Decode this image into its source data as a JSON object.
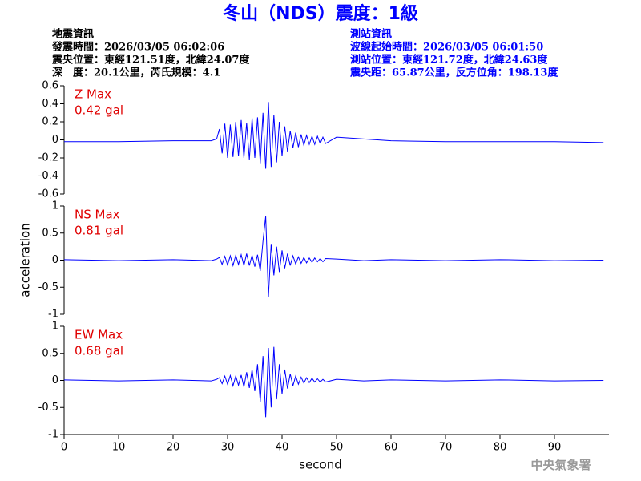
{
  "header": {
    "title": "冬山（NDS）震度：1級",
    "left": [
      "地震資訊",
      "發震時間：2026/03/05 06:02:06",
      "震央位置：東經121.51度，北緯24.07度",
      "深　度：20.1公里，芮氏規模：4.1"
    ],
    "right": [
      "測站資訊",
      "波線起始時間：2026/03/05 06:01:50",
      "測站位置：東經121.72度，北緯24.63度",
      "震央距：65.87公里，反方位角：198.13度"
    ]
  },
  "footer": "中央氣象署",
  "chart_data": [
    {
      "type": "line",
      "annotation": [
        "Z Max",
        "0.42 gal"
      ],
      "color": "#0000ff",
      "xlim": [
        0,
        100
      ],
      "ylim": [
        -0.6,
        0.6
      ],
      "yticks": [
        -0.6,
        -0.4,
        -0.2,
        0,
        0.2,
        0.4,
        0.6
      ],
      "x": [
        0,
        10,
        20,
        27,
        28,
        28.5,
        29,
        29.5,
        30,
        30.5,
        31,
        31.5,
        32,
        32.5,
        33,
        33.5,
        34,
        34.5,
        35,
        35.5,
        36,
        36.5,
        37,
        37.5,
        38,
        38.5,
        39,
        39.5,
        40,
        40.5,
        41,
        41.5,
        42,
        42.5,
        43,
        43.5,
        44,
        44.5,
        45,
        45.5,
        46,
        46.5,
        47,
        47.5,
        48,
        50,
        55,
        60,
        70,
        80,
        90,
        99
      ],
      "values": [
        -0.02,
        -0.02,
        -0.01,
        -0.01,
        0.01,
        0.12,
        -0.15,
        0.18,
        -0.2,
        0.17,
        -0.19,
        0.2,
        -0.18,
        0.22,
        -0.2,
        0.19,
        -0.22,
        0.24,
        -0.2,
        0.25,
        -0.26,
        0.3,
        -0.32,
        0.42,
        -0.3,
        0.28,
        -0.25,
        0.2,
        -0.18,
        0.15,
        -0.13,
        0.1,
        -0.09,
        0.08,
        -0.08,
        0.06,
        -0.06,
        0.05,
        -0.05,
        0.04,
        -0.05,
        0.04,
        -0.04,
        0.03,
        -0.04,
        0.03,
        0.01,
        -0.01,
        -0.02,
        -0.02,
        -0.02,
        -0.03
      ]
    },
    {
      "type": "line",
      "annotation": [
        "NS Max",
        "0.81 gal"
      ],
      "y_label": "acceleration",
      "color": "#0000ff",
      "xlim": [
        0,
        100
      ],
      "ylim": [
        -1,
        1
      ],
      "yticks": [
        -1,
        -0.5,
        0,
        0.5,
        1
      ],
      "x": [
        0,
        10,
        20,
        27,
        28,
        28.5,
        29,
        29.5,
        30,
        30.5,
        31,
        31.5,
        32,
        32.5,
        33,
        33.5,
        34,
        34.5,
        35,
        35.5,
        36,
        36.5,
        37,
        37.5,
        38,
        38.5,
        39,
        39.5,
        40,
        40.5,
        41,
        41.5,
        42,
        42.5,
        43,
        43.5,
        44,
        44.5,
        45,
        45.5,
        46,
        46.5,
        47,
        47.5,
        48,
        50,
        55,
        60,
        70,
        80,
        90,
        99
      ],
      "values": [
        0.01,
        -0.01,
        0.01,
        -0.01,
        0.02,
        0.05,
        -0.08,
        0.07,
        -0.09,
        0.08,
        -0.1,
        0.09,
        -0.08,
        0.1,
        -0.1,
        0.12,
        -0.1,
        0.09,
        -0.12,
        0.1,
        -0.2,
        0.35,
        0.81,
        -0.68,
        0.3,
        -0.28,
        0.25,
        -0.22,
        0.18,
        -0.15,
        0.12,
        -0.1,
        0.08,
        -0.07,
        0.06,
        -0.06,
        0.05,
        -0.05,
        0.04,
        -0.04,
        0.04,
        -0.03,
        0.03,
        -0.03,
        0.03,
        0.02,
        -0.01,
        0.01,
        -0.01,
        0.01,
        -0.01,
        0
      ]
    },
    {
      "type": "line",
      "annotation": [
        "EW Max",
        "0.68 gal"
      ],
      "x_label": "second",
      "color": "#0000ff",
      "xlim": [
        0,
        100
      ],
      "ylim": [
        -1,
        1
      ],
      "yticks": [
        -1,
        -0.5,
        0,
        0.5,
        1
      ],
      "xticks": [
        0,
        10,
        20,
        30,
        40,
        50,
        60,
        70,
        80,
        90
      ],
      "x": [
        0,
        10,
        20,
        27,
        28,
        28.5,
        29,
        29.5,
        30,
        30.5,
        31,
        31.5,
        32,
        32.5,
        33,
        33.5,
        34,
        34.5,
        35,
        35.5,
        36,
        36.5,
        37,
        37.5,
        38,
        38.5,
        39,
        39.5,
        40,
        40.5,
        41,
        41.5,
        42,
        42.5,
        43,
        43.5,
        44,
        44.5,
        45,
        45.5,
        46,
        46.5,
        47,
        47.5,
        48,
        50,
        55,
        60,
        70,
        80,
        90,
        99
      ],
      "values": [
        0.01,
        -0.01,
        0.01,
        -0.01,
        0.02,
        0.05,
        -0.06,
        0.08,
        -0.07,
        0.09,
        -0.1,
        0.08,
        -0.09,
        0.1,
        -0.12,
        0.15,
        -0.14,
        0.2,
        -0.2,
        0.3,
        -0.4,
        0.45,
        -0.68,
        0.6,
        -0.5,
        0.62,
        -0.35,
        0.3,
        -0.25,
        0.2,
        -0.15,
        0.12,
        -0.1,
        0.08,
        -0.07,
        0.06,
        -0.05,
        0.05,
        -0.04,
        0.04,
        -0.03,
        0.03,
        -0.03,
        0.02,
        -0.03,
        0.02,
        -0.01,
        0.01,
        -0.01,
        0.01,
        -0.01,
        0
      ]
    }
  ]
}
